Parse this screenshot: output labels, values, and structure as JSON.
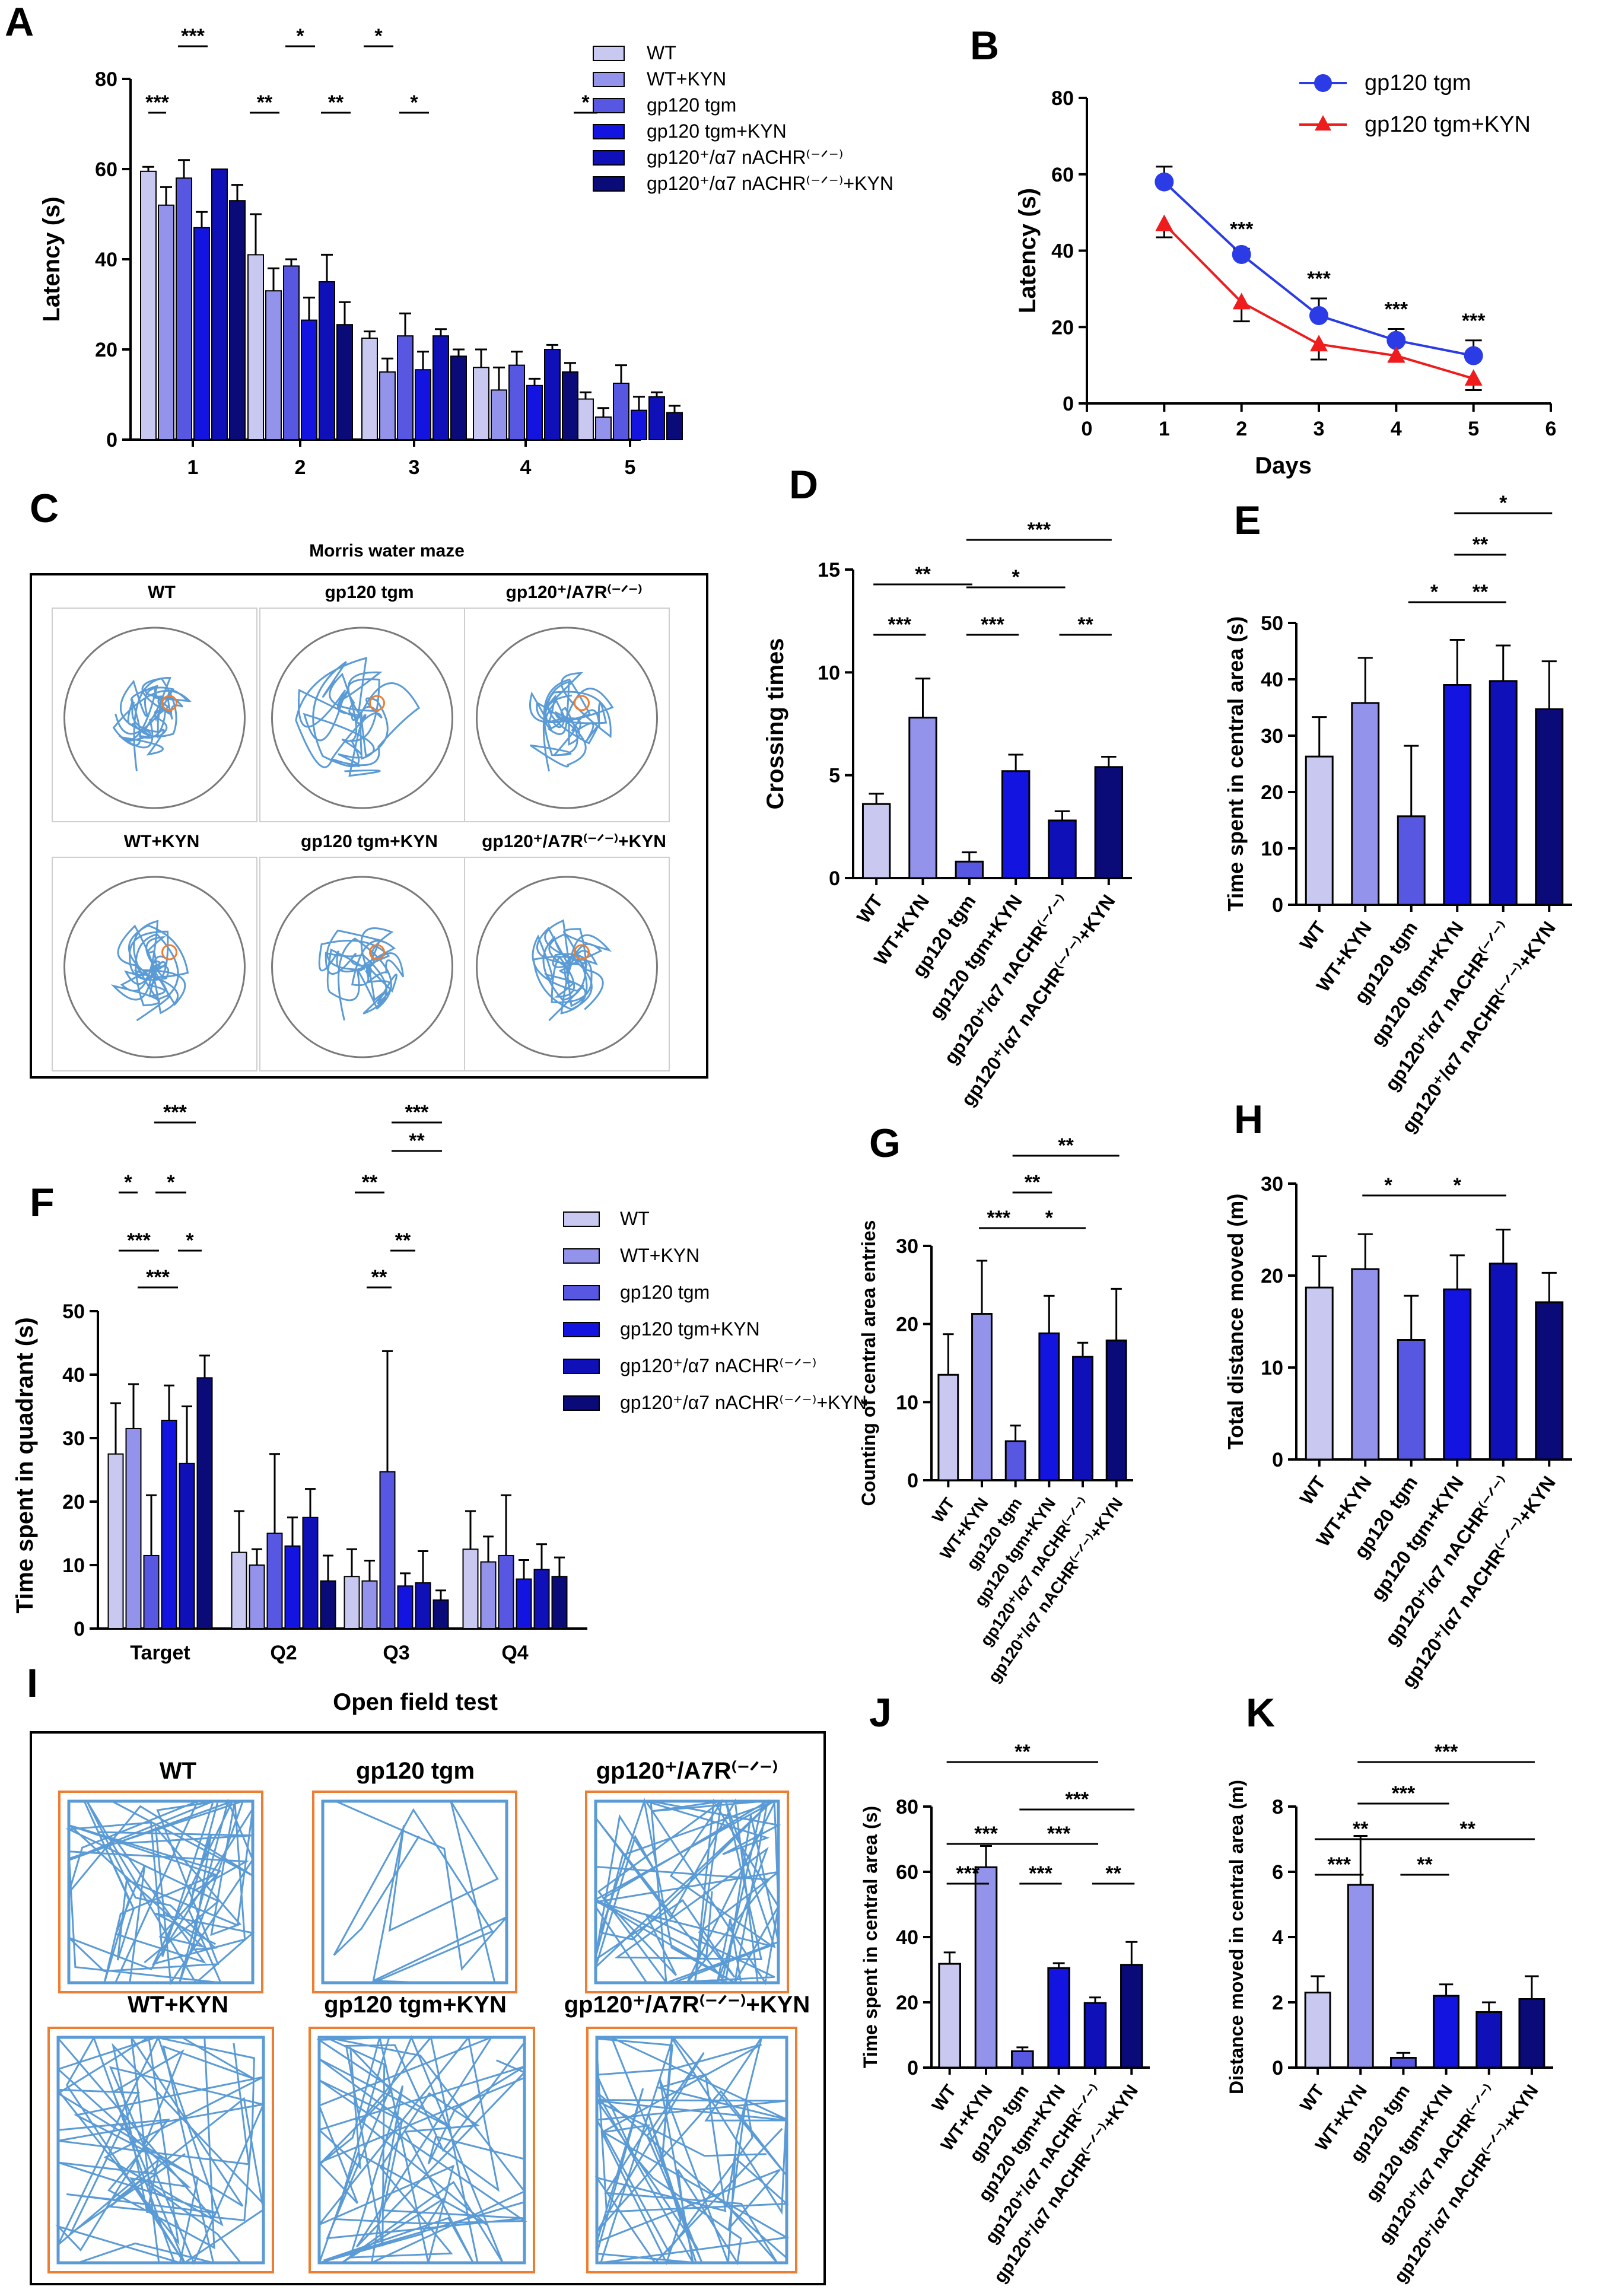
{
  "colors": {
    "c1": "#c8c8f0",
    "c2": "#9393ec",
    "c3": "#5757e2",
    "c4": "#1414e0",
    "c5": "#1010b8",
    "c6": "#0a0a78",
    "line_gp": "#2b3be6",
    "line_kyn": "#ee1c1c",
    "track": "#5b9bd5",
    "arena_border": "#ed7d31"
  },
  "panels": {
    "A": "A",
    "B": "B",
    "C": "C",
    "D": "D",
    "E": "E",
    "F": "F",
    "G": "G",
    "H": "H",
    "I": "I",
    "J": "J",
    "K": "K"
  },
  "groups_a": [
    "WT",
    "WT+KYN",
    "gp120 tgm",
    "gp120 tgm+KYN",
    "gp120⁺/α7 nACHR⁽⁻ᐟ⁻⁾",
    "gp120⁺/α7 nACHR⁽⁻ᐟ⁻⁾+KYN"
  ],
  "groups_f": [
    "WT",
    "WT+KYN",
    "gp120 tgm",
    "gp120 tgm+KYN",
    "gp120⁺/α7 nACHR⁽⁻ᐟ⁻⁾",
    "gp120⁺/α7 nACHR⁽⁻ᐟ⁻⁾+KYN"
  ],
  "mwm": {
    "title": "Morris water maze",
    "labels": [
      "WT",
      "gp120 tgm",
      "gp120⁺/A7R⁽⁻ᐟ⁻⁾",
      "WT+KYN",
      "gp120 tgm+KYN",
      "gp120⁺/A7R⁽⁻ᐟ⁻⁾+KYN"
    ]
  },
  "oft": {
    "title": "Open field test",
    "labels": [
      "WT",
      "gp120 tgm",
      "gp120⁺/A7R⁽⁻ᐟ⁻⁾",
      "WT+KYN",
      "gp120 tgm+KYN",
      "gp120⁺/A7R⁽⁻ᐟ⁻⁾+KYN"
    ]
  },
  "chart_data": [
    {
      "panel": "A",
      "type": "bar",
      "categories": [
        "1",
        "2",
        "3",
        "4",
        "5"
      ],
      "ylabel": "Latency (s)",
      "xlabel": "",
      "ylim": [
        0,
        80
      ],
      "yticks": [
        0,
        20,
        40,
        60,
        80
      ],
      "series": [
        {
          "name": "WT",
          "values": [
            59.5,
            41,
            22.5,
            16,
            9
          ],
          "errors": [
            1,
            9,
            1.5,
            4,
            1.5
          ]
        },
        {
          "name": "WT+KYN",
          "values": [
            52,
            33,
            15,
            11,
            5
          ],
          "errors": [
            4,
            5,
            3,
            5,
            2
          ]
        },
        {
          "name": "gp120 tgm",
          "values": [
            58,
            38.5,
            23,
            16.5,
            12.5
          ],
          "errors": [
            4,
            1.5,
            5,
            3,
            4
          ]
        },
        {
          "name": "gp120 tgm+KYN",
          "values": [
            47,
            26.5,
            15.5,
            12,
            6.5
          ],
          "errors": [
            3.5,
            5,
            4,
            1.5,
            3
          ]
        },
        {
          "name": "gp120+/a7 nACHR(-/-)",
          "values": [
            60,
            35,
            23,
            20,
            9.5
          ],
          "errors": [
            0,
            6,
            1.5,
            1,
            1
          ]
        },
        {
          "name": "gp120+/a7 nACHR(-/-)+KYN",
          "values": [
            53,
            25.5,
            18.5,
            15,
            6
          ],
          "errors": [
            3.5,
            5,
            1.5,
            2,
            1.5
          ]
        }
      ],
      "significance": [
        "***",
        "***",
        "*",
        "*",
        "**",
        "**",
        "*",
        "*"
      ]
    },
    {
      "panel": "B",
      "type": "line",
      "x": [
        1,
        2,
        3,
        4,
        5
      ],
      "xlabel": "Days",
      "ylabel": "Latency (s)",
      "xlim": [
        0,
        6
      ],
      "ylim": [
        0,
        80
      ],
      "xticks": [
        0,
        1,
        2,
        3,
        4,
        5,
        6
      ],
      "yticks": [
        0,
        20,
        40,
        60,
        80
      ],
      "series": [
        {
          "name": "gp120 tgm",
          "values": [
            58,
            39,
            23,
            16.5,
            12.5
          ],
          "errors": [
            4,
            1.5,
            4.5,
            3,
            4
          ]
        },
        {
          "name": "gp120 tgm+KYN",
          "values": [
            47,
            26.5,
            15.5,
            12.5,
            6.5
          ],
          "errors": [
            3.5,
            5,
            4,
            1.5,
            3
          ]
        }
      ],
      "significance": [
        "***",
        "***",
        "***",
        "***"
      ]
    },
    {
      "panel": "D",
      "type": "bar",
      "categories": [
        "WT",
        "WT+KYN",
        "gp120 tgm",
        "gp120 tgm+KYN",
        "gp120⁺/α7 nACHR⁽⁻ᐟ⁻⁾",
        "gp120⁺/α7 nACHR⁽⁻ᐟ⁻⁾+KYN"
      ],
      "values": [
        3.6,
        7.8,
        0.8,
        5.2,
        2.8,
        5.4
      ],
      "errors": [
        0.5,
        1.9,
        0.45,
        0.8,
        0.45,
        0.5
      ],
      "ylabel": "Crossing times",
      "ylim": [
        0,
        15
      ],
      "yticks": [
        0,
        5,
        10,
        15
      ],
      "significance": [
        "***",
        "**",
        "*",
        "***",
        "***",
        "**"
      ]
    },
    {
      "panel": "E",
      "type": "bar",
      "categories": [
        "WT",
        "WT+KYN",
        "gp120 tgm",
        "gp120 tgm+KYN",
        "gp120⁺/α7 nACHR⁽⁻ᐟ⁻⁾",
        "gp120⁺/α7 nACHR⁽⁻ᐟ⁻⁾+KYN"
      ],
      "values": [
        26.3,
        35.8,
        15.7,
        39,
        39.7,
        34.7
      ],
      "errors": [
        7,
        8,
        12.5,
        8,
        6.3,
        8.5
      ],
      "ylabel": "Time spent in central area (s)",
      "ylim": [
        0,
        50
      ],
      "yticks": [
        0,
        10,
        20,
        30,
        40,
        50
      ],
      "significance": [
        "*",
        "**",
        "**",
        "*"
      ]
    },
    {
      "panel": "F",
      "type": "bar",
      "categories": [
        "Target",
        "Q2",
        "Q3",
        "Q4"
      ],
      "ylabel": "Time spent in quadrant (s)",
      "ylim": [
        0,
        50
      ],
      "yticks": [
        0,
        10,
        20,
        30,
        40,
        50
      ],
      "series": [
        {
          "name": "WT",
          "values": [
            27.5,
            12,
            8.2,
            12.5
          ],
          "errors": [
            8,
            6.5,
            4.3,
            6
          ]
        },
        {
          "name": "WT+KYN",
          "values": [
            31.5,
            10,
            7.5,
            10.5
          ],
          "errors": [
            7,
            2.5,
            3.2,
            4
          ]
        },
        {
          "name": "gp120 tgm",
          "values": [
            11.5,
            15,
            24.7,
            11.5
          ],
          "errors": [
            9.5,
            12.5,
            19,
            9.5
          ]
        },
        {
          "name": "gp120 tgm+KYN",
          "values": [
            32.8,
            13,
            6.7,
            7.8
          ],
          "errors": [
            5.5,
            4.5,
            2,
            3
          ]
        },
        {
          "name": "gp120+/a7 nACHR(-/-)",
          "values": [
            26,
            17.5,
            7.2,
            9.3
          ],
          "errors": [
            9,
            4.5,
            5,
            4
          ]
        },
        {
          "name": "gp120+/a7 nACHR(-/-)+KYN",
          "values": [
            39.5,
            7.5,
            4.5,
            8.2
          ],
          "errors": [
            3.5,
            4,
            1.5,
            3
          ]
        }
      ],
      "significance": [
        "***",
        "*",
        "*",
        "***",
        "*",
        "***",
        "***",
        "**",
        "**",
        "**"
      ]
    },
    {
      "panel": "G",
      "type": "bar",
      "categories": [
        "WT",
        "WT+KYN",
        "gp120 tgm",
        "gp120 tgm+KYN",
        "gp120⁺/α7 nACHR⁽⁻ᐟ⁻⁾",
        "gp120⁺/α7 nACHR⁽⁻ᐟ⁻⁾+KYN"
      ],
      "values": [
        13.5,
        21.3,
        5,
        18.8,
        15.8,
        17.9
      ],
      "errors": [
        5.2,
        6.8,
        2,
        4.8,
        1.8,
        6.6
      ],
      "ylabel": "Counting of central area entries",
      "ylim": [
        0,
        30
      ],
      "yticks": [
        0,
        10,
        20,
        30
      ],
      "significance": [
        "***",
        "**",
        "*",
        "**"
      ]
    },
    {
      "panel": "H",
      "type": "bar",
      "categories": [
        "WT",
        "WT+KYN",
        "gp120 tgm",
        "gp120 tgm+KYN",
        "gp120⁺/α7 nACHR⁽⁻ᐟ⁻⁾",
        "gp120⁺/α7 nACHR⁽⁻ᐟ⁻⁾+KYN"
      ],
      "values": [
        18.7,
        20.7,
        13,
        18.5,
        21.3,
        17.1
      ],
      "errors": [
        3.4,
        3.8,
        4.8,
        3.7,
        3.7,
        3.2
      ],
      "ylabel": "Total distance moved (m)",
      "ylim": [
        0,
        30
      ],
      "yticks": [
        0,
        10,
        20,
        30
      ],
      "significance": [
        "*",
        "*"
      ]
    },
    {
      "panel": "J",
      "type": "bar",
      "categories": [
        "WT",
        "WT+KYN",
        "gp120 tgm",
        "gp120 tgm+KYN",
        "gp120⁺/α7 nACHR⁽⁻ᐟ⁻⁾",
        "gp120⁺/α7 nACHR⁽⁻ᐟ⁻⁾+KYN"
      ],
      "values": [
        31.8,
        61.4,
        5,
        30.5,
        19.8,
        31.5
      ],
      "errors": [
        3.5,
        6.5,
        1.2,
        1.5,
        1.7,
        7
      ],
      "ylabel": "Time spent in central area (s)",
      "ylim": [
        0,
        80
      ],
      "yticks": [
        0,
        20,
        40,
        60,
        80
      ],
      "significance": [
        "**",
        "***",
        "***",
        "***",
        "***",
        "***",
        "**"
      ]
    },
    {
      "panel": "K",
      "type": "bar",
      "categories": [
        "WT",
        "WT+KYN",
        "gp120 tgm",
        "gp120 tgm+KYN",
        "gp120⁺/α7 nACHR⁽⁻ᐟ⁻⁾",
        "gp120⁺/α7 nACHR⁽⁻ᐟ⁻⁾+KYN"
      ],
      "values": [
        2.3,
        5.6,
        0.3,
        2.2,
        1.7,
        2.1
      ],
      "errors": [
        0.5,
        1.5,
        0.15,
        0.35,
        0.3,
        0.7
      ],
      "ylabel": "Distance moved in central area (m)",
      "ylim": [
        0,
        8
      ],
      "yticks": [
        0,
        2,
        4,
        6,
        8
      ],
      "significance": [
        "***",
        "***",
        "**",
        "**",
        "***",
        "**"
      ]
    }
  ]
}
